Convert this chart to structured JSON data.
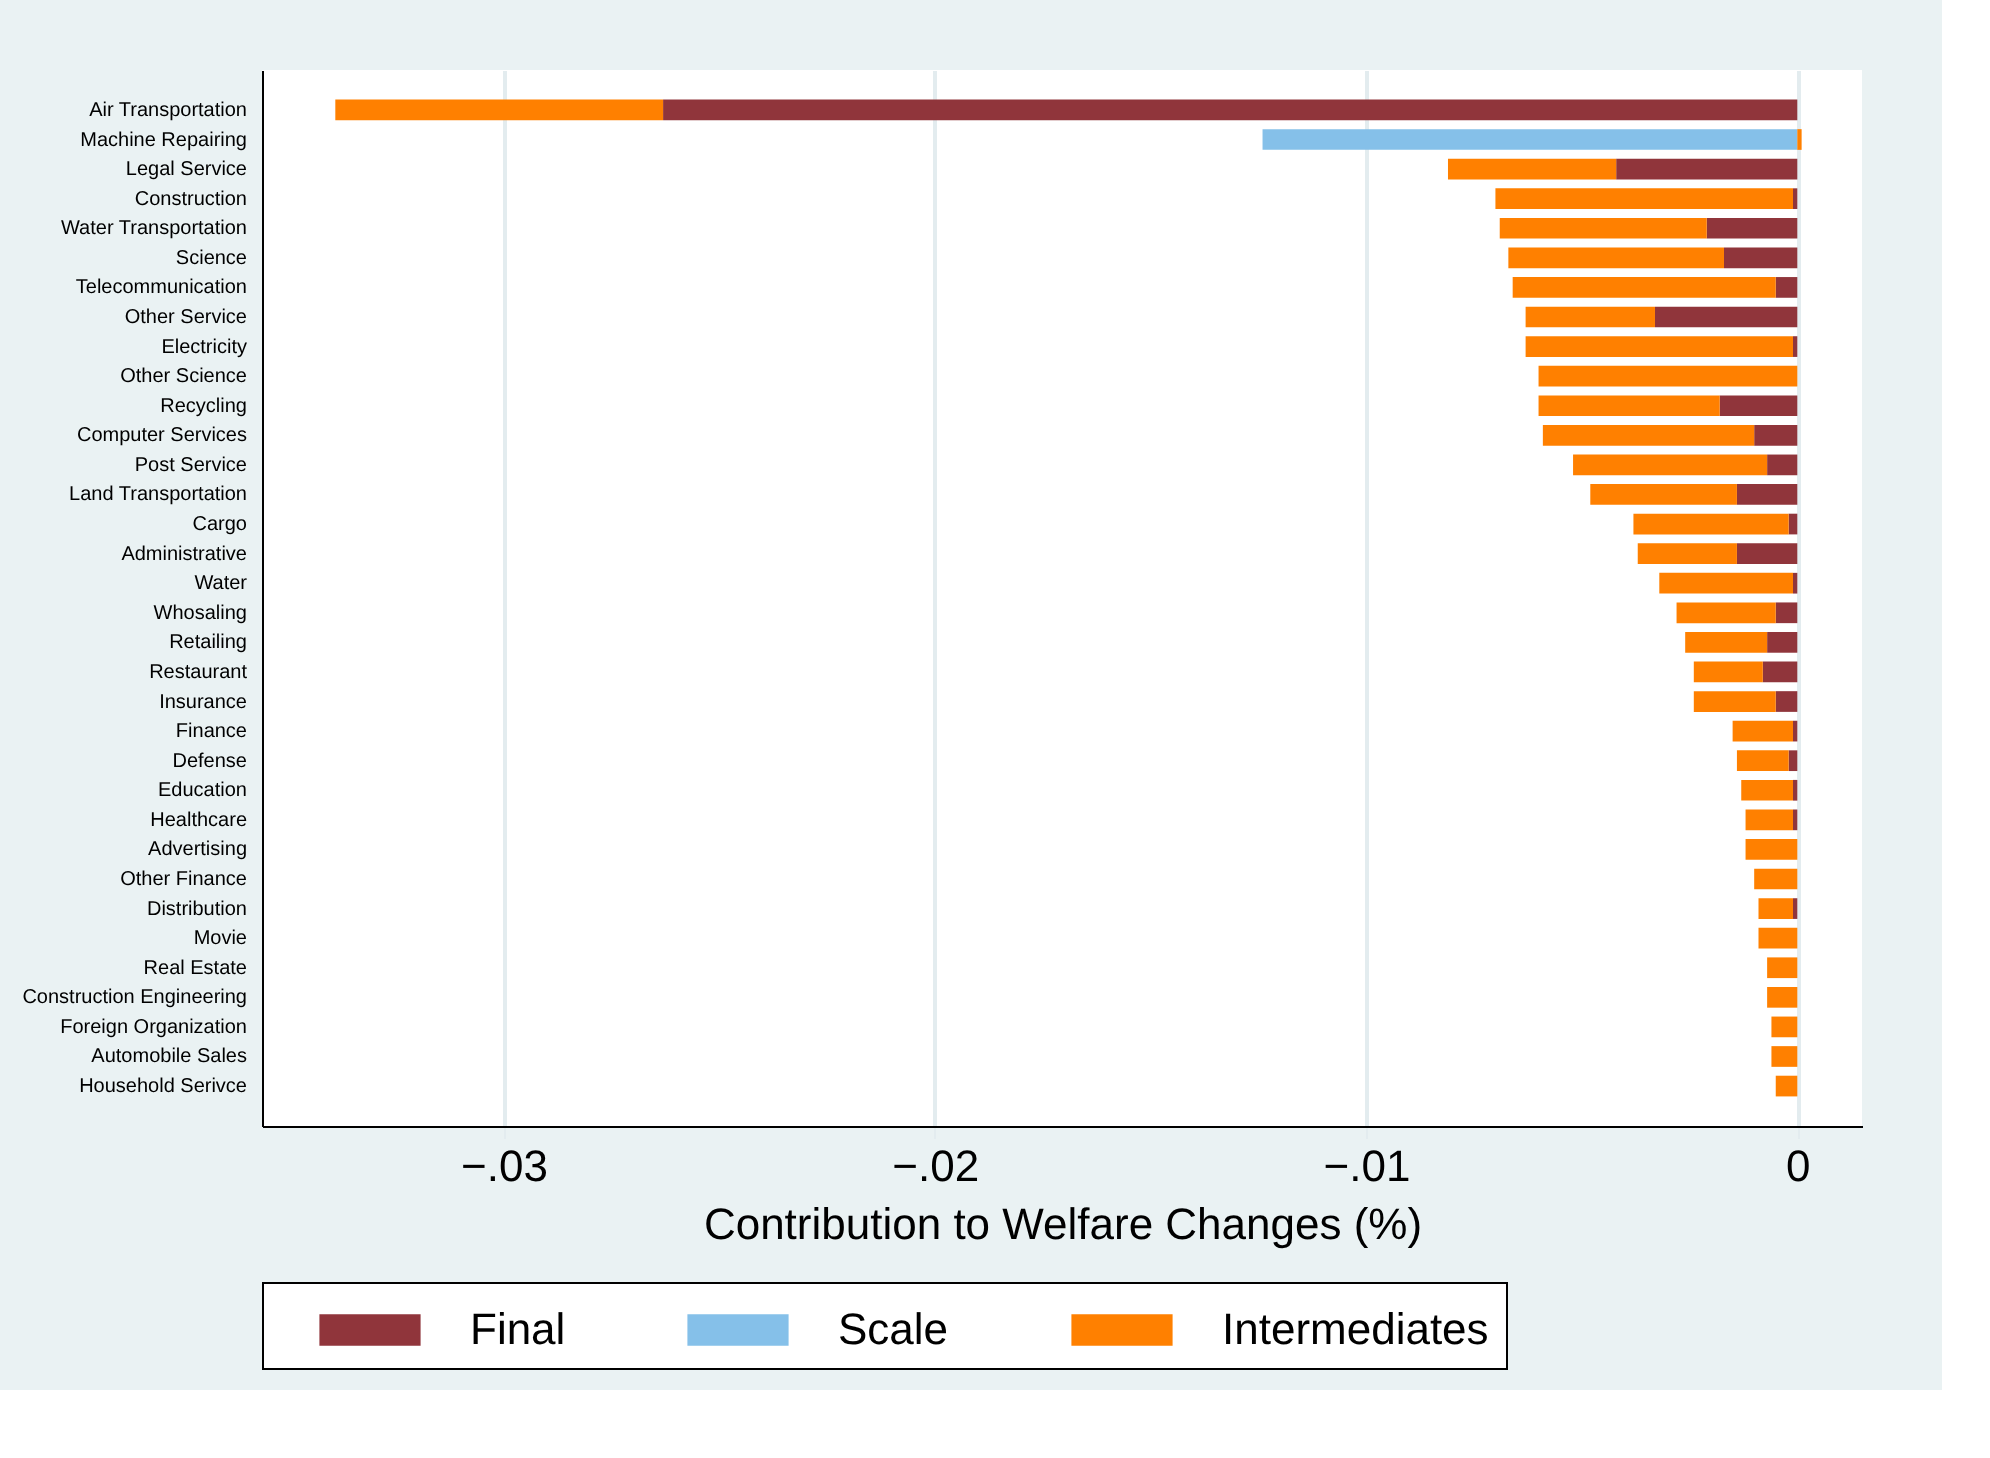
{
  "chart_data": {
    "type": "bar",
    "orientation": "horizontal",
    "stacked": true,
    "xlabel": "Contribution to Welfare Changes (%)",
    "categories": [
      "Air Transportation",
      "Machine Repairing",
      "Legal Service",
      "Construction",
      "Water Transportation",
      "Science",
      "Telecommunication",
      "Other Service",
      "Electricity",
      "Other Science",
      "Recycling",
      "Computer Services",
      "Post Service",
      "Land Transportation",
      "Cargo",
      "Administrative",
      "Water",
      "Whosaling",
      "Retailing",
      "Restaurant",
      "Insurance",
      "Finance",
      "Defense",
      "Education",
      "Healthcare",
      "Advertising",
      "Other Finance",
      "Distribution",
      "Movie",
      "Real Estate",
      "Construction Engineering",
      "Foreign Organization",
      "Automobile Sales",
      "Household Serivce"
    ],
    "series": [
      {
        "name": "Final",
        "color": "#90353b",
        "values": [
          -0.0263,
          null,
          -0.0042,
          -0.0001,
          -0.0021,
          -0.0017,
          -0.0005,
          -0.0033,
          -0.0001,
          null,
          -0.0018,
          -0.001,
          -0.0007,
          -0.0014,
          -0.0002,
          -0.0014,
          -0.0001,
          -0.0005,
          -0.0007,
          -0.0008,
          -0.0005,
          -0.0001,
          -0.0002,
          -0.0001,
          -0.0001,
          null,
          null,
          -0.0001,
          null,
          null,
          null,
          null,
          null,
          null
        ]
      },
      {
        "name": "Scale",
        "color": "#85c0e9",
        "values": [
          null,
          -0.0124,
          null,
          null,
          null,
          null,
          null,
          null,
          null,
          null,
          null,
          null,
          null,
          null,
          null,
          null,
          null,
          null,
          null,
          null,
          null,
          null,
          null,
          null,
          null,
          null,
          null,
          null,
          null,
          null,
          null,
          null,
          null,
          null
        ]
      },
      {
        "name": "Intermediates",
        "color": "#ff8000",
        "values": [
          -0.0076,
          0.0001,
          -0.0039,
          -0.0069,
          -0.0048,
          -0.005,
          -0.0061,
          -0.003,
          -0.0062,
          -0.006,
          -0.0042,
          -0.0049,
          -0.0045,
          -0.0034,
          -0.0036,
          -0.0023,
          -0.0031,
          -0.0023,
          -0.0019,
          -0.0016,
          -0.0019,
          -0.0014,
          -0.0012,
          -0.0012,
          -0.0011,
          -0.0012,
          -0.001,
          -0.0008,
          -0.0009,
          -0.0007,
          -0.0007,
          -0.0006,
          -0.0006,
          -0.0005
        ]
      }
    ],
    "xlim": [
      -0.0356,
      0.0015
    ],
    "xticks": [
      {
        "value": -0.03,
        "label": "−.03"
      },
      {
        "value": -0.02,
        "label": "−.02"
      },
      {
        "value": -0.01,
        "label": "−.01"
      },
      0
    ],
    "grid": "x",
    "legend": "bottom"
  }
}
